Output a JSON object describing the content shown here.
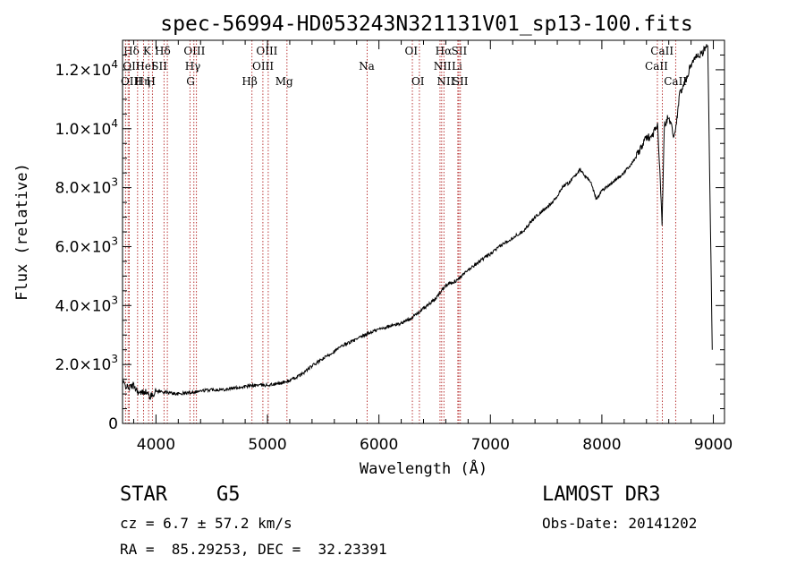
{
  "chart_data": {
    "type": "line",
    "title": "spec-56994-HD053243N321131V01_sp13-100.fits",
    "xlabel": "Wavelength (Å)",
    "ylabel": "Flux (relative)",
    "xlim": [
      3700,
      9100
    ],
    "ylim": [
      0,
      13000
    ],
    "xticks": [
      {
        "value": 4000,
        "label": "4000"
      },
      {
        "value": 5000,
        "label": "5000"
      },
      {
        "value": 6000,
        "label": "6000"
      },
      {
        "value": 7000,
        "label": "7000"
      },
      {
        "value": 8000,
        "label": "8000"
      },
      {
        "value": 9000,
        "label": "9000"
      }
    ],
    "yticks": [
      {
        "value": 0,
        "mant": "0",
        "exp": ""
      },
      {
        "value": 2000,
        "mant": "2.0×10",
        "exp": "3"
      },
      {
        "value": 4000,
        "mant": "4.0×10",
        "exp": "3"
      },
      {
        "value": 6000,
        "mant": "6.0×10",
        "exp": "3"
      },
      {
        "value": 8000,
        "mant": "8.0×10",
        "exp": "3"
      },
      {
        "value": 10000,
        "mant": "1.0×10",
        "exp": "4"
      },
      {
        "value": 12000,
        "mant": "1.2×10",
        "exp": "4"
      }
    ],
    "series": [
      {
        "name": "spectrum",
        "x": [
          3700,
          3750,
          3800,
          3850,
          3900,
          3950,
          4000,
          4100,
          4200,
          4300,
          4400,
          4500,
          4600,
          4700,
          4800,
          4900,
          5000,
          5100,
          5200,
          5300,
          5400,
          5500,
          5600,
          5700,
          5800,
          5900,
          6000,
          6100,
          6200,
          6300,
          6400,
          6500,
          6550,
          6600,
          6700,
          6800,
          6900,
          7000,
          7100,
          7200,
          7300,
          7400,
          7500,
          7600,
          7650,
          7700,
          7800,
          7900,
          7950,
          8000,
          8100,
          8200,
          8300,
          8400,
          8450,
          8500,
          8540,
          8560,
          8600,
          8650,
          8700,
          8750,
          8800,
          8850,
          8900,
          8950,
          8990
        ],
        "y": [
          1400,
          1200,
          1300,
          1000,
          1100,
          900,
          1100,
          1050,
          1000,
          1050,
          1100,
          1150,
          1150,
          1200,
          1250,
          1300,
          1300,
          1350,
          1450,
          1650,
          1950,
          2200,
          2450,
          2700,
          2850,
          3050,
          3200,
          3300,
          3400,
          3600,
          3900,
          4200,
          4450,
          4700,
          4850,
          5200,
          5500,
          5750,
          6050,
          6300,
          6550,
          7000,
          7300,
          7700,
          8050,
          8150,
          8600,
          8200,
          7600,
          7900,
          8200,
          8500,
          9000,
          9700,
          9750,
          10200,
          6800,
          10100,
          10450,
          9700,
          11200,
          11600,
          12200,
          12500,
          12550,
          12900,
          2500
        ]
      }
    ],
    "lines": [
      {
        "name": "Hδ",
        "x": 3750,
        "label_row": 1,
        "label_x": 3780
      },
      {
        "name": "OII",
        "x": 3727,
        "label_row": 2,
        "label_x": 3780
      },
      {
        "name": "OIII",
        "x": 3760,
        "label_row": 3,
        "label_x": 3780
      },
      {
        "name": "K",
        "x": 3934,
        "label_row": 1,
        "label_x": 3920
      },
      {
        "name": "HeI",
        "x": 3889,
        "label_row": 2,
        "label_x": 3905
      },
      {
        "name": "Hη",
        "x": 3835,
        "label_row": 3,
        "label_x": 3880
      },
      {
        "name": "Hδ",
        "x": 4102,
        "label_row": 1,
        "label_x": 4060
      },
      {
        "name": "SII",
        "x": 4072,
        "label_row": 2,
        "label_x": 4030
      },
      {
        "name": "H",
        "x": 3968,
        "label_row": 3,
        "label_x": 3955
      },
      {
        "name": "OIII",
        "x": 4363,
        "label_row": 1,
        "label_x": 4345
      },
      {
        "name": "Hγ",
        "x": 4340,
        "label_row": 2,
        "label_x": 4330
      },
      {
        "name": "G",
        "x": 4305,
        "label_row": 3,
        "label_x": 4310
      },
      {
        "name": "OIII",
        "x": 5007,
        "label_row": 1,
        "label_x": 4995
      },
      {
        "name": "OIII",
        "x": 4959,
        "label_row": 2,
        "label_x": 4960
      },
      {
        "name": "Hβ",
        "x": 4861,
        "label_row": 3,
        "label_x": 4840
      },
      {
        "name": "Mg",
        "x": 5175,
        "label_row": 3,
        "label_x": 5150
      },
      {
        "name": "Na",
        "x": 5894,
        "label_row": 2,
        "label_x": 5890
      },
      {
        "name": "OI",
        "x": 6300,
        "label_row": 1,
        "label_x": 6290
      },
      {
        "name": "OI",
        "x": 6363,
        "label_row": 3,
        "label_x": 6350
      },
      {
        "name": "Hα",
        "x": 6563,
        "label_row": 1,
        "label_x": 6580
      },
      {
        "name": "NII",
        "x": 6548,
        "label_row": 2,
        "label_x": 6570
      },
      {
        "name": "NII",
        "x": 6583,
        "label_row": 3,
        "label_x": 6600
      },
      {
        "name": "SII",
        "x": 6717,
        "label_row": 1,
        "label_x": 6720
      },
      {
        "name": "Li",
        "x": 6708,
        "label_row": 2,
        "label_x": 6700
      },
      {
        "name": "SII",
        "x": 6731,
        "label_row": 3,
        "label_x": 6730
      },
      {
        "name": "CaII",
        "x": 8542,
        "label_row": 1,
        "label_x": 8540
      },
      {
        "name": "CaII",
        "x": 8498,
        "label_row": 2,
        "label_x": 8490
      },
      {
        "name": "CaII",
        "x": 8662,
        "label_row": 3,
        "label_x": 8660
      }
    ]
  },
  "info": {
    "object_type": "STAR",
    "subclass": "G5",
    "survey": "LAMOST DR3",
    "redshift": "cz = 6.7 ± 57.2 km/s",
    "obs_date": "Obs-Date: 20141202",
    "coords": "RA =  85.29253, DEC =  32.23391"
  }
}
